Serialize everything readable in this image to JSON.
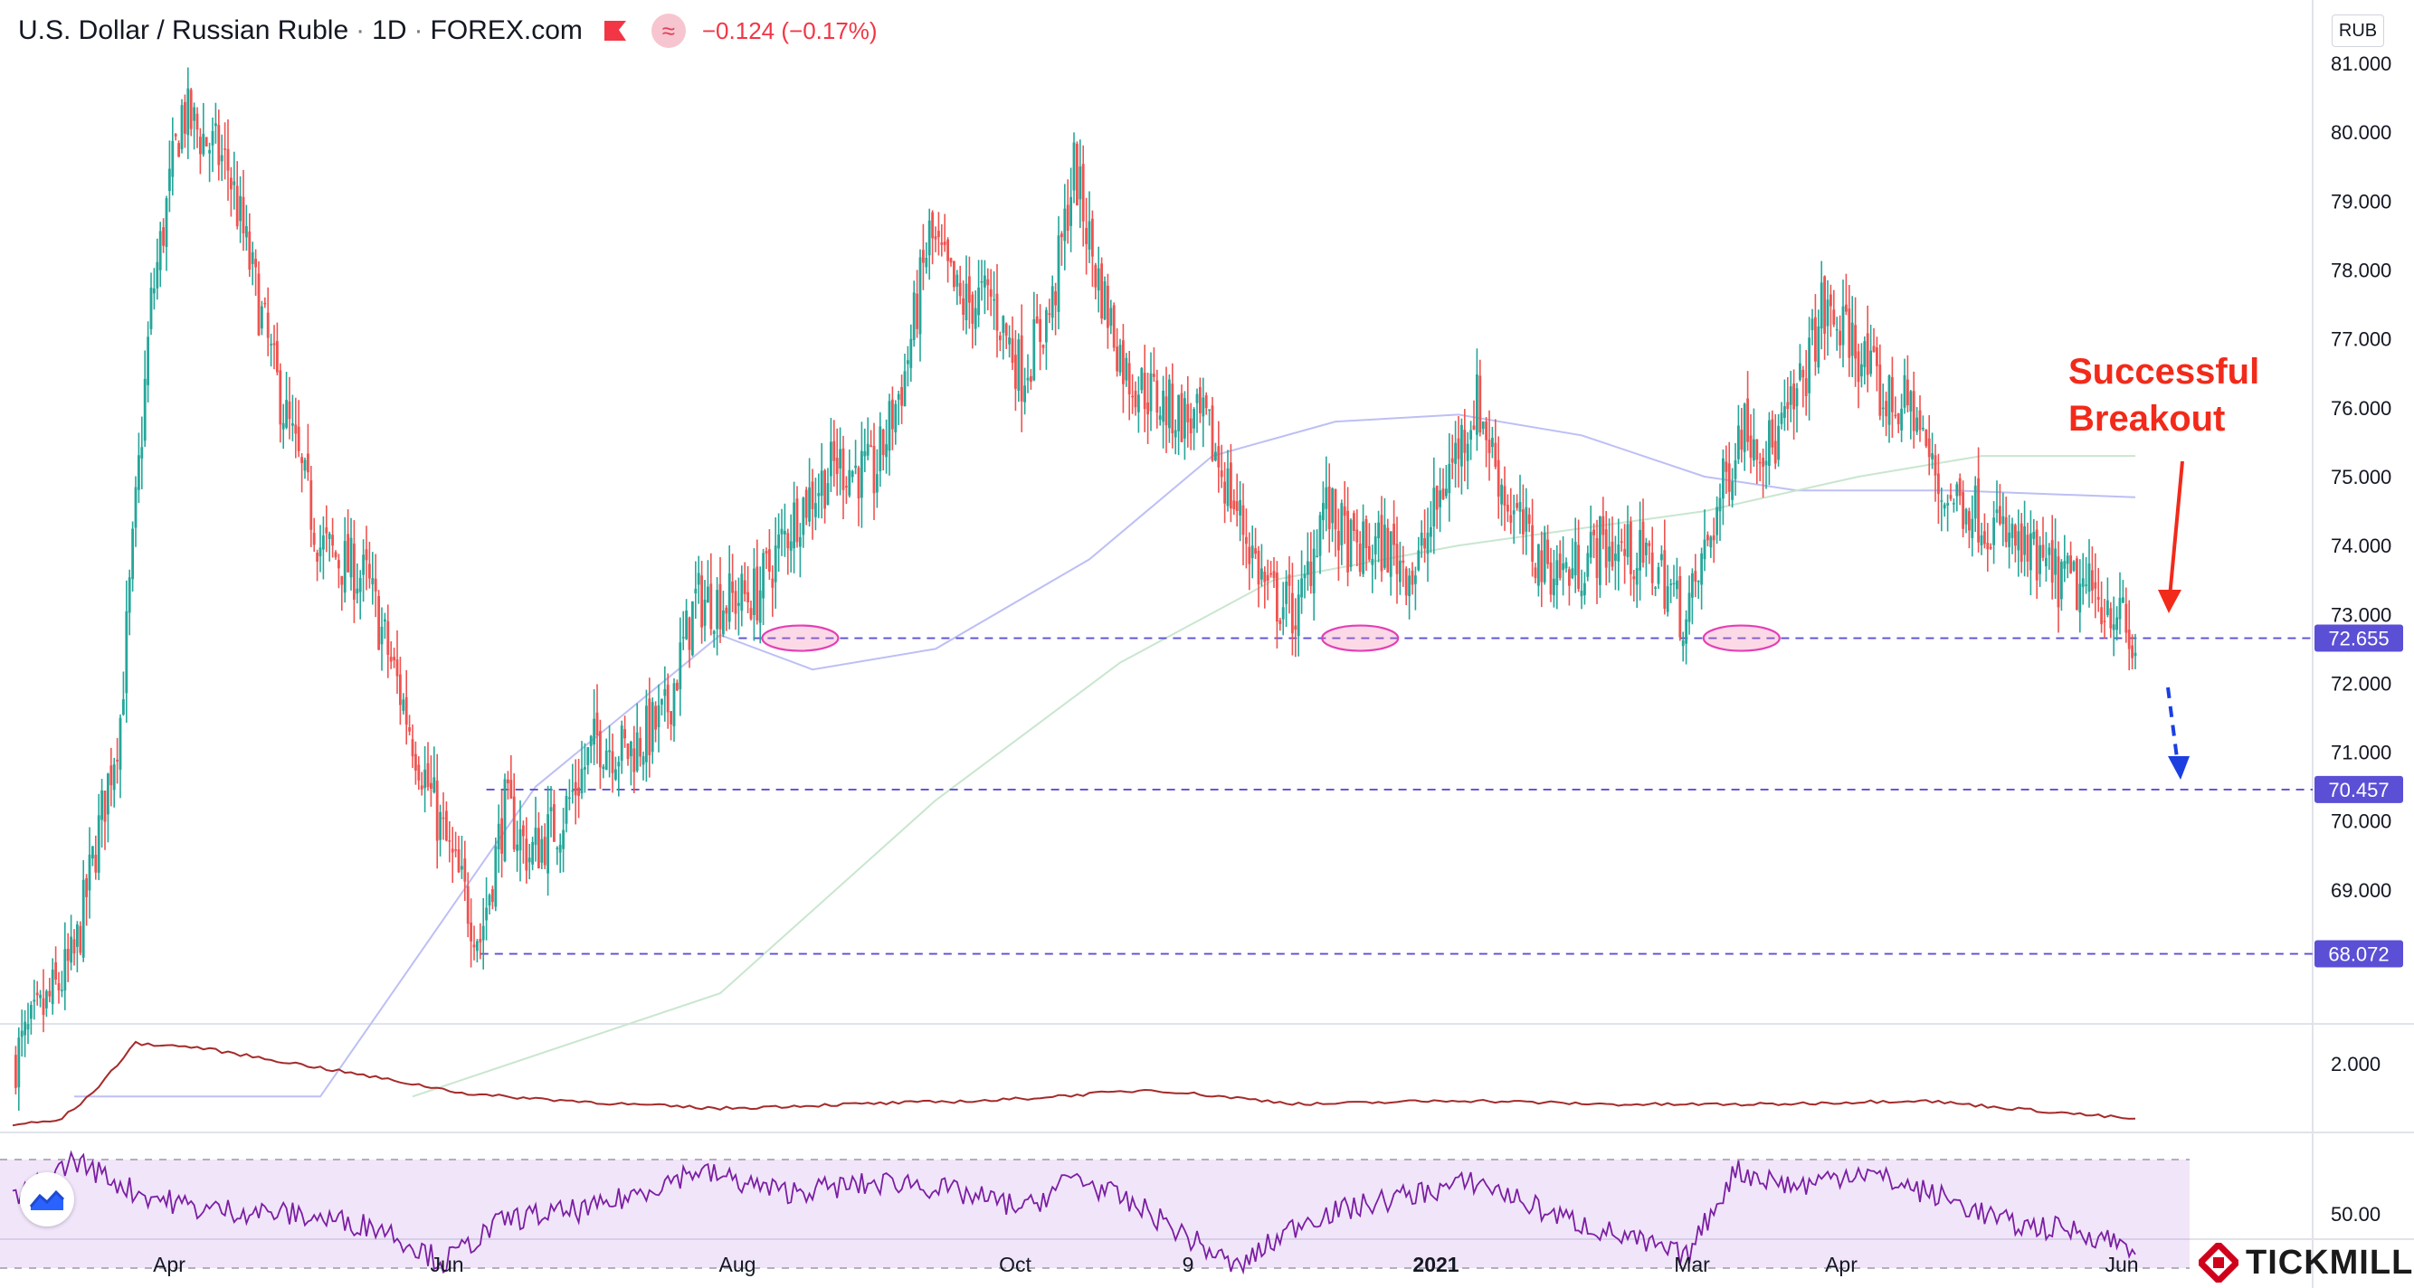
{
  "header": {
    "symbol": "U.S. Dollar / Russian Ruble",
    "interval": "1D",
    "source": "FOREX.com",
    "change": "−0.124 (−0.17%)",
    "currency": "RUB"
  },
  "brand": {
    "name": "TICKMILL"
  },
  "colors": {
    "up": "#26a69a",
    "down": "#ef5350",
    "level": "#5b4fd6",
    "ma_fast": "#bdbff5",
    "ma_slow": "#c9e6cf",
    "atr": "#a52a2a",
    "rsi": "#7b1fa2",
    "annotation": "#f22a1a",
    "target_arrow": "#1c3fe0"
  },
  "chart_data": [
    {
      "type": "candlestick",
      "title": "U.S. Dollar / Russian Ruble · 1D · FOREX.com",
      "ylim": [
        66.0,
        81.5
      ],
      "y_ticks": [
        69.0,
        70.0,
        71.0,
        72.0,
        73.0,
        74.0,
        75.0,
        76.0,
        77.0,
        78.0,
        79.0,
        80.0,
        81.0
      ],
      "y_tick_labels": [
        "69.000",
        "70.000",
        "71.000",
        "72.000",
        "73.000",
        "74.000",
        "75.000",
        "76.000",
        "77.000",
        "78.000",
        "79.000",
        "80.000",
        "81.000"
      ],
      "x_ticks": [
        "Apr",
        "Jun",
        "Aug",
        "Oct",
        "9",
        "2021",
        "Mar",
        "Apr",
        "Jun"
      ],
      "price_path": [
        [
          0,
          66.5
        ],
        [
          20,
          68.0
        ],
        [
          35,
          71.5
        ],
        [
          45,
          77.5
        ],
        [
          55,
          80.3
        ],
        [
          70,
          79.5
        ],
        [
          85,
          76.5
        ],
        [
          100,
          74.0
        ],
        [
          115,
          73.5
        ],
        [
          125,
          72.0
        ],
        [
          135,
          70.5
        ],
        [
          142,
          69.5
        ],
        [
          152,
          68.3
        ],
        [
          160,
          70.2
        ],
        [
          168,
          69.5
        ],
        [
          178,
          70.0
        ],
        [
          190,
          71.2
        ],
        [
          200,
          71.0
        ],
        [
          212,
          71.5
        ],
        [
          222,
          73.2
        ],
        [
          232,
          73.2
        ],
        [
          242,
          73.3
        ],
        [
          255,
          74.5
        ],
        [
          268,
          75.2
        ],
        [
          280,
          75.0
        ],
        [
          290,
          76.5
        ],
        [
          298,
          78.5
        ],
        [
          308,
          77.5
        ],
        [
          318,
          77.6
        ],
        [
          328,
          76.5
        ],
        [
          338,
          77.5
        ],
        [
          345,
          79.5
        ],
        [
          352,
          78.0
        ],
        [
          362,
          76.5
        ],
        [
          375,
          76.0
        ],
        [
          388,
          75.7
        ],
        [
          398,
          74.5
        ],
        [
          408,
          73.3
        ],
        [
          418,
          73.0
        ],
        [
          426,
          74.6
        ],
        [
          436,
          73.9
        ],
        [
          446,
          74.0
        ],
        [
          456,
          73.6
        ],
        [
          466,
          75.0
        ],
        [
          476,
          76.1
        ],
        [
          486,
          74.6
        ],
        [
          496,
          73.8
        ],
        [
          506,
          73.6
        ],
        [
          516,
          74.0
        ],
        [
          526,
          73.9
        ],
        [
          536,
          73.6
        ],
        [
          544,
          72.9
        ],
        [
          552,
          74.2
        ],
        [
          562,
          75.8
        ],
        [
          572,
          75.4
        ],
        [
          580,
          76.1
        ],
        [
          588,
          77.4
        ],
        [
          598,
          77.0
        ],
        [
          608,
          76.1
        ],
        [
          618,
          76.0
        ],
        [
          626,
          74.8
        ],
        [
          636,
          74.6
        ],
        [
          646,
          74.2
        ],
        [
          656,
          73.8
        ],
        [
          666,
          73.5
        ],
        [
          676,
          73.3
        ],
        [
          684,
          73.1
        ],
        [
          690,
          72.3
        ]
      ],
      "levels": [
        72.655,
        70.457,
        68.072
      ],
      "level_labels": [
        "72.655",
        "70.457",
        "68.072"
      ],
      "series": [
        {
          "values": [
            [
              20,
              66.0
            ],
            [
              100,
              66.0
            ],
            [
              170,
              70.5
            ],
            [
              230,
              72.7
            ],
            [
              260,
              72.2
            ],
            [
              300,
              72.5
            ],
            [
              350,
              73.8
            ],
            [
              390,
              75.3
            ],
            [
              430,
              75.8
            ],
            [
              470,
              75.9
            ],
            [
              510,
              75.6
            ],
            [
              550,
              75.0
            ],
            [
              580,
              74.8
            ],
            [
              630,
              74.8
            ],
            [
              690,
              74.7
            ]
          ]
        },
        {
          "values": [
            [
              130,
              66.0
            ],
            [
              230,
              67.5
            ],
            [
              300,
              70.3
            ],
            [
              360,
              72.3
            ],
            [
              410,
              73.5
            ],
            [
              470,
              74.0
            ],
            [
              550,
              74.5
            ],
            [
              600,
              75.0
            ],
            [
              640,
              75.3
            ],
            [
              690,
              75.3
            ]
          ]
        }
      ],
      "annotations": [
        {
          "text_line1": "Successful",
          "text_line2": "Breakout"
        }
      ]
    },
    {
      "type": "line",
      "ylim": [
        1.2,
        2.4
      ],
      "y_ticks": [
        2.0
      ],
      "y_tick_labels": [
        "2.000"
      ],
      "values": [
        [
          0,
          1.25
        ],
        [
          15,
          1.3
        ],
        [
          25,
          1.6
        ],
        [
          40,
          2.25
        ],
        [
          60,
          2.2
        ],
        [
          100,
          1.95
        ],
        [
          150,
          1.62
        ],
        [
          200,
          1.5
        ],
        [
          230,
          1.45
        ],
        [
          270,
          1.5
        ],
        [
          320,
          1.55
        ],
        [
          370,
          1.68
        ],
        [
          420,
          1.5
        ],
        [
          470,
          1.55
        ],
        [
          520,
          1.5
        ],
        [
          570,
          1.5
        ],
        [
          620,
          1.55
        ],
        [
          650,
          1.45
        ],
        [
          690,
          1.32
        ]
      ]
    },
    {
      "type": "line",
      "ylim": [
        42,
        78
      ],
      "y_ticks": [
        50.0
      ],
      "y_tick_labels": [
        "50.00"
      ],
      "band": [
        30,
        70
      ],
      "values": [
        [
          0,
          55
        ],
        [
          10,
          62
        ],
        [
          20,
          70
        ],
        [
          30,
          64
        ],
        [
          40,
          58
        ],
        [
          60,
          52
        ],
        [
          90,
          50
        ],
        [
          120,
          45
        ],
        [
          140,
          32
        ],
        [
          160,
          48
        ],
        [
          190,
          52
        ],
        [
          222,
          66
        ],
        [
          250,
          58
        ],
        [
          290,
          62
        ],
        [
          330,
          52
        ],
        [
          345,
          64
        ],
        [
          370,
          50
        ],
        [
          398,
          30
        ],
        [
          420,
          48
        ],
        [
          450,
          56
        ],
        [
          476,
          62
        ],
        [
          500,
          50
        ],
        [
          544,
          34
        ],
        [
          560,
          66
        ],
        [
          580,
          60
        ],
        [
          600,
          66
        ],
        [
          630,
          55
        ],
        [
          650,
          46
        ],
        [
          670,
          44
        ],
        [
          690,
          38
        ]
      ]
    }
  ]
}
